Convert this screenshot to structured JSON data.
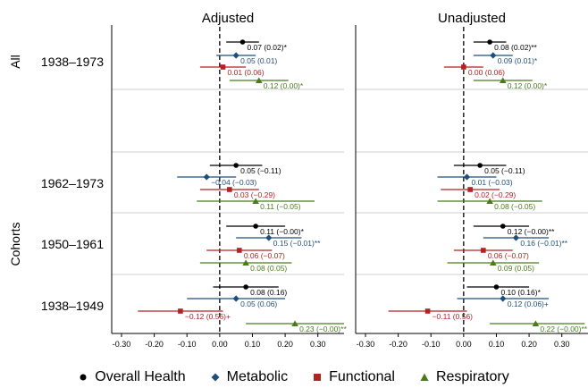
{
  "chart_data": {
    "type": "forest",
    "panels": [
      {
        "title": "Adjusted"
      },
      {
        "title": "Unadjusted"
      }
    ],
    "group_labels": [
      "All",
      "Cohorts"
    ],
    "row_labels": [
      "1938–1973",
      "1962–1973",
      "1950–1961",
      "1938–1949"
    ],
    "x_ticks": [
      -0.3,
      -0.2,
      -0.1,
      0.0,
      0.1,
      0.2,
      0.3
    ],
    "x_tick_labels": [
      "-0.30",
      "-0.20",
      "-0.10",
      "0.00",
      "0.10",
      "0.20",
      "0.30"
    ],
    "xlim": [
      -0.33,
      0.38
    ],
    "reference_line": 0,
    "colors": {
      "Overall Health": "#000000",
      "Metabolic": "#1f4e79",
      "Functional": "#b22222",
      "Respiratory": "#4a7a1e"
    },
    "series": [
      {
        "name": "Overall Health",
        "marker": "circle",
        "adjusted": [
          {
            "est": 0.07,
            "lo": 0.02,
            "hi": 0.12,
            "label": "0.07 (0.02)*"
          },
          {
            "est": 0.05,
            "lo": -0.03,
            "hi": 0.13,
            "label": "0.05 (−0.11)"
          },
          {
            "est": 0.11,
            "lo": 0.02,
            "hi": 0.2,
            "label": "0.11 (−0.00)*"
          },
          {
            "est": 0.08,
            "lo": -0.02,
            "hi": 0.18,
            "label": "0.08 (0.16)"
          }
        ],
        "unadjusted": [
          {
            "est": 0.08,
            "lo": 0.03,
            "hi": 0.13,
            "label": "0.08 (0.02)**"
          },
          {
            "est": 0.05,
            "lo": -0.03,
            "hi": 0.13,
            "label": "0.05 (−0.11)"
          },
          {
            "est": 0.12,
            "lo": 0.03,
            "hi": 0.2,
            "label": "0.12 (−0.00)**"
          },
          {
            "est": 0.1,
            "lo": 0.01,
            "hi": 0.2,
            "label": "0.10 (0.16)*"
          }
        ]
      },
      {
        "name": "Metabolic",
        "marker": "diamond",
        "adjusted": [
          {
            "est": 0.05,
            "lo": -0.01,
            "hi": 0.11,
            "label": "0.05 (0.01)"
          },
          {
            "est": -0.04,
            "lo": -0.13,
            "hi": 0.05,
            "label": "−0.04 (−0.03)"
          },
          {
            "est": 0.15,
            "lo": 0.05,
            "hi": 0.25,
            "label": "0.15 (−0.01)**"
          },
          {
            "est": 0.05,
            "lo": -0.1,
            "hi": 0.2,
            "label": "0.05 (0.06)"
          }
        ],
        "unadjusted": [
          {
            "est": 0.09,
            "lo": 0.03,
            "hi": 0.15,
            "label": "0.09 (0.01)*"
          },
          {
            "est": 0.01,
            "lo": -0.08,
            "hi": 0.1,
            "label": "0.01 (−0.03)"
          },
          {
            "est": 0.16,
            "lo": 0.06,
            "hi": 0.26,
            "label": "0.16 (−0.01)**"
          },
          {
            "est": 0.12,
            "lo": -0.02,
            "hi": 0.26,
            "label": "0.12 (0.06)+"
          }
        ]
      },
      {
        "name": "Functional",
        "marker": "square",
        "adjusted": [
          {
            "est": 0.01,
            "lo": -0.06,
            "hi": 0.08,
            "label": "0.01 (0.06)"
          },
          {
            "est": 0.03,
            "lo": -0.06,
            "hi": 0.12,
            "label": "0.03 (−0.29)"
          },
          {
            "est": 0.06,
            "lo": -0.04,
            "hi": 0.16,
            "label": "0.06 (−0.07)"
          },
          {
            "est": -0.12,
            "lo": -0.25,
            "hi": 0.01,
            "label": "−0.12 (0.56)+"
          }
        ],
        "unadjusted": [
          {
            "est": 0.0,
            "lo": -0.06,
            "hi": 0.06,
            "label": "0.00 (0.06)"
          },
          {
            "est": 0.02,
            "lo": -0.07,
            "hi": 0.11,
            "label": "0.02 (−0.29)"
          },
          {
            "est": 0.06,
            "lo": -0.03,
            "hi": 0.15,
            "label": "0.06 (−0.07)"
          },
          {
            "est": -0.11,
            "lo": -0.23,
            "hi": 0.01,
            "label": "−0.11 (0.56)"
          }
        ]
      },
      {
        "name": "Respiratory",
        "marker": "triangle",
        "adjusted": [
          {
            "est": 0.12,
            "lo": 0.03,
            "hi": 0.21,
            "label": "0.12 (0.00)*"
          },
          {
            "est": 0.11,
            "lo": -0.07,
            "hi": 0.29,
            "label": "0.11 (−0.05)"
          },
          {
            "est": 0.08,
            "lo": -0.06,
            "hi": 0.22,
            "label": "0.08 (0.05)"
          },
          {
            "est": 0.23,
            "lo": 0.08,
            "hi": 0.38,
            "label": "0.23 (−0.00)**"
          }
        ],
        "unadjusted": [
          {
            "est": 0.12,
            "lo": 0.03,
            "hi": 0.21,
            "label": "0.12 (0.00)*"
          },
          {
            "est": 0.08,
            "lo": -0.08,
            "hi": 0.24,
            "label": "0.08 (−0.05)"
          },
          {
            "est": 0.09,
            "lo": -0.05,
            "hi": 0.23,
            "label": "0.09 (0.05)"
          },
          {
            "est": 0.22,
            "lo": 0.08,
            "hi": 0.37,
            "label": "0.22 (−0.00)**"
          }
        ]
      }
    ],
    "legend_position": "bottom"
  }
}
